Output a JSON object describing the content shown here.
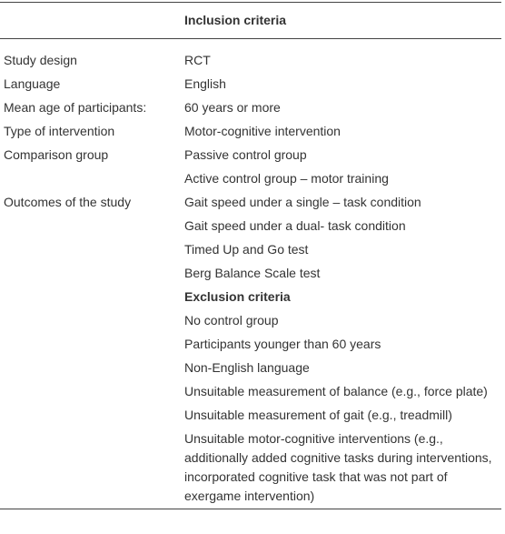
{
  "header": {
    "title": "Inclusion criteria"
  },
  "inclusion": [
    {
      "label": "Study design",
      "items": [
        "RCT"
      ]
    },
    {
      "label": "Language",
      "items": [
        "English"
      ]
    },
    {
      "label": "Mean age of participants:",
      "items": [
        "60 years or more"
      ]
    },
    {
      "label": "Type of intervention",
      "items": [
        "Motor-cognitive intervention"
      ]
    },
    {
      "label": "Comparison group",
      "items": [
        "Passive control group",
        "Active control group – motor training"
      ]
    },
    {
      "label": "Outcomes of the study",
      "items": [
        "Gait speed under a single – task condition",
        "Gait speed under a dual- task condition",
        "Timed Up and Go test",
        "Berg Balance Scale test"
      ]
    }
  ],
  "exclusion": {
    "title": "Exclusion criteria",
    "items": [
      "No control group",
      "Participants younger than 60 years",
      "Non-English language",
      "Unsuitable measurement of balance (e.g., force plate)",
      "Unsuitable measurement of gait (e.g., treadmill)",
      "Unsuitable motor-cognitive interventions (e.g., additionally added cognitive tasks during interventions, incorporated cognitive task that was not part of exergame intervention)"
    ]
  }
}
